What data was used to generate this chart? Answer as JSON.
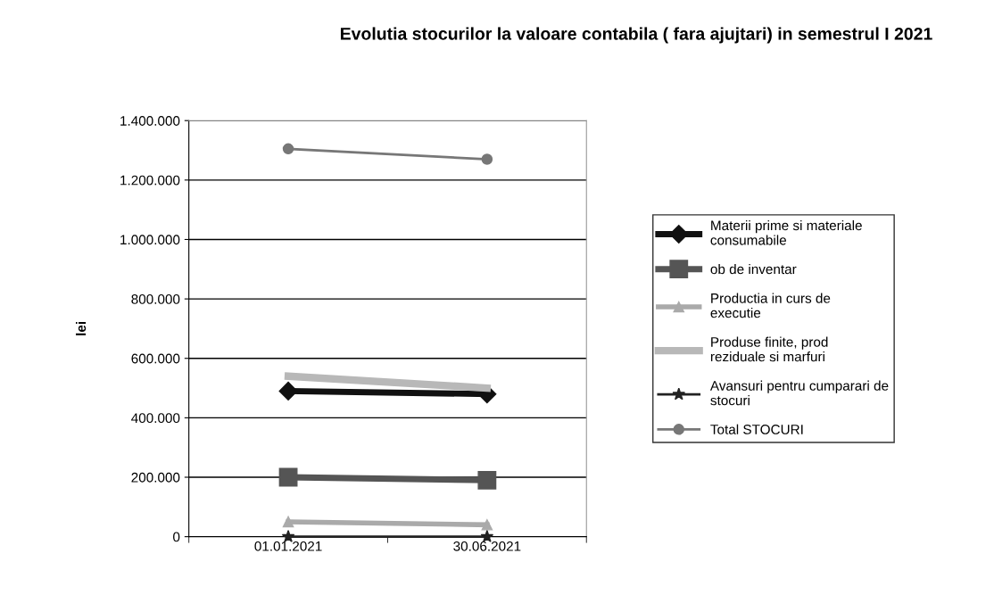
{
  "chart_data": {
    "type": "line",
    "title": "Evolutia stocurilor la valoare contabila ( fara ajujtari) in semestrul I 2021",
    "ylabel": "lei",
    "categories": [
      "01.01.2021",
      "30.06.2021"
    ],
    "series": [
      {
        "name": "Materii prime si materiale consumabile",
        "color": "#111111",
        "marker": "diamond",
        "values": [
          490000,
          480000
        ]
      },
      {
        "name": "ob de inventar",
        "color": "#555555",
        "marker": "square",
        "values": [
          200000,
          190000
        ]
      },
      {
        "name": "Productia in curs de executie",
        "color": "#aaaaaa",
        "marker": "triangle",
        "values": [
          50000,
          40000
        ]
      },
      {
        "name": "Produse finite, prod reziduale si marfuri",
        "color": "#b8b8b8",
        "marker": "none",
        "values": [
          540000,
          500000
        ]
      },
      {
        "name": "Avansuri pentru cumparari de stocuri",
        "color": "#222222",
        "marker": "star",
        "values": [
          0,
          0
        ]
      },
      {
        "name": "Total STOCURI",
        "color": "#777777",
        "marker": "circle",
        "values": [
          1305000,
          1270000
        ]
      }
    ],
    "ylim": [
      0,
      1400000
    ],
    "yticks": [
      {
        "value": 0,
        "label": "0"
      },
      {
        "value": 200000,
        "label": "200.000"
      },
      {
        "value": 400000,
        "label": "400.000"
      },
      {
        "value": 600000,
        "label": "600.000"
      },
      {
        "value": 800000,
        "label": "800.000"
      },
      {
        "value": 1000000,
        "label": "1.000.000"
      },
      {
        "value": 1200000,
        "label": "1.200.000"
      },
      {
        "value": 1400000,
        "label": "1.400.000"
      }
    ],
    "grid": "y",
    "legend": "right"
  }
}
